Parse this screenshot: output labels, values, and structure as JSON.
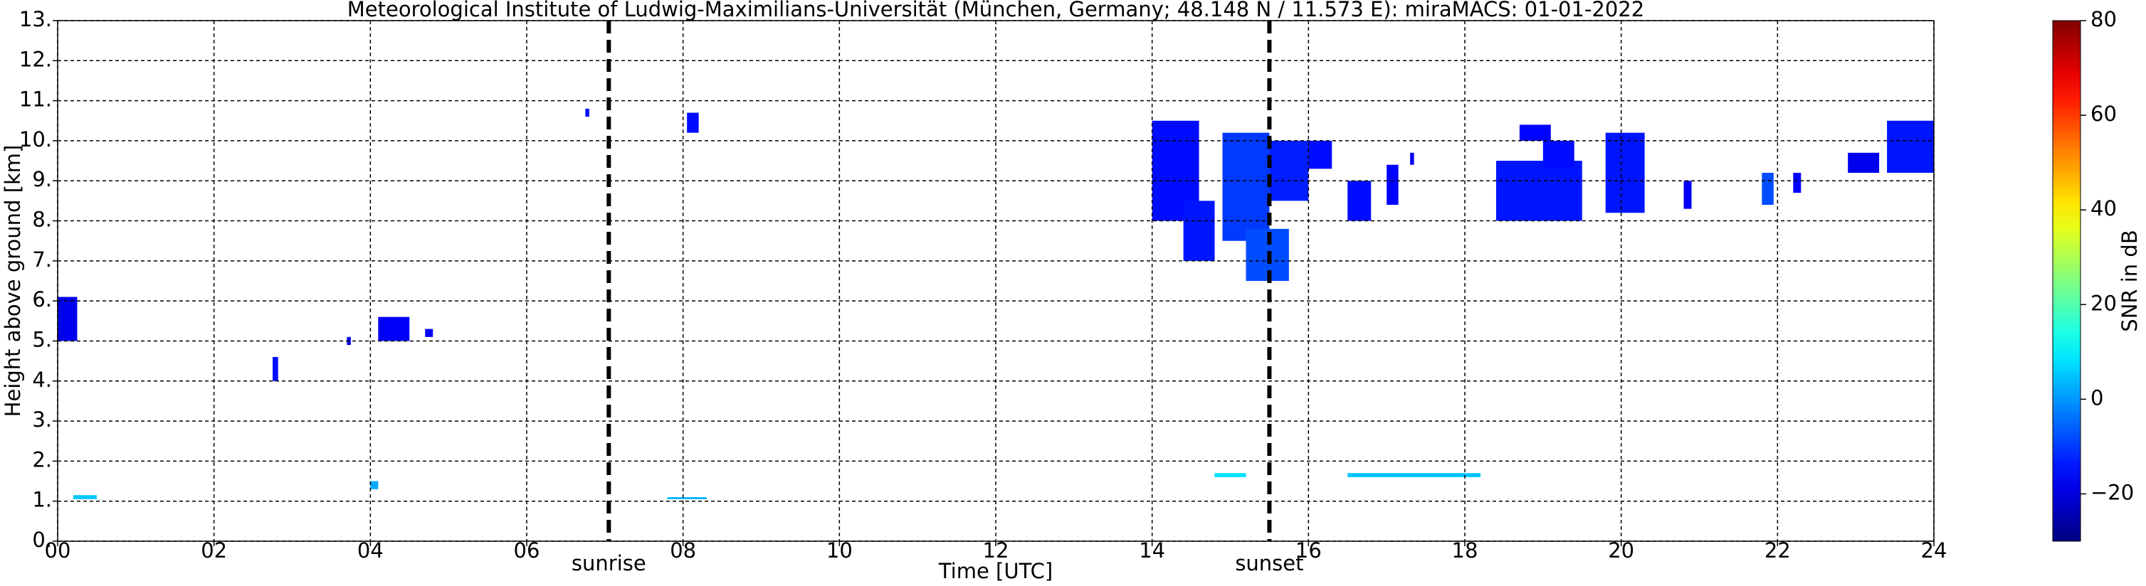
{
  "chart_data": {
    "type": "heatmap",
    "title": "Meteorological Institute of Ludwig-Maximilians-Universität (München, Germany; 48.148 N / 11.573 E):    miraMACS: 01-01-2022",
    "x_label": "Time [UTC]",
    "y_label": "Height above ground [km]",
    "colorbar_label": "SNR in dB",
    "colormap": "jet",
    "xlim": [
      0,
      24
    ],
    "ylim": [
      0,
      13
    ],
    "clim": [
      -30,
      80
    ],
    "grid": true,
    "xticks": [
      {
        "value": 0,
        "label": "00"
      },
      {
        "value": 2,
        "label": "02"
      },
      {
        "value": 4,
        "label": "04"
      },
      {
        "value": 6,
        "label": "06"
      },
      {
        "value": 8,
        "label": "08"
      },
      {
        "value": 10,
        "label": "10"
      },
      {
        "value": 12,
        "label": "12"
      },
      {
        "value": 14,
        "label": "14"
      },
      {
        "value": 16,
        "label": "16"
      },
      {
        "value": 18,
        "label": "18"
      },
      {
        "value": 20,
        "label": "20"
      },
      {
        "value": 22,
        "label": "22"
      },
      {
        "value": 24,
        "label": "24"
      }
    ],
    "yticks": [
      {
        "value": 0,
        "label": "0."
      },
      {
        "value": 1,
        "label": "1."
      },
      {
        "value": 2,
        "label": "2."
      },
      {
        "value": 3,
        "label": "3."
      },
      {
        "value": 4,
        "label": "4."
      },
      {
        "value": 5,
        "label": "5."
      },
      {
        "value": 6,
        "label": "6."
      },
      {
        "value": 7,
        "label": "7."
      },
      {
        "value": 8,
        "label": "8."
      },
      {
        "value": 9,
        "label": "9."
      },
      {
        "value": 10,
        "label": "10."
      },
      {
        "value": 11,
        "label": "11."
      },
      {
        "value": 12,
        "label": "12."
      },
      {
        "value": 13,
        "label": "13."
      }
    ],
    "cticks": [
      {
        "value": -20,
        "label": "−20"
      },
      0,
      20,
      40,
      60,
      80
    ],
    "markers": [
      {
        "label": "sunrise",
        "x": 7.05
      },
      {
        "label": "sunset",
        "x": 15.5
      }
    ],
    "cells": [
      {
        "t": [
          0.0,
          0.25
        ],
        "h": [
          5.0,
          6.1
        ],
        "snr": -18
      },
      {
        "t": [
          2.75,
          2.82
        ],
        "h": [
          4.0,
          4.6
        ],
        "snr": -15
      },
      {
        "t": [
          3.7,
          3.75
        ],
        "h": [
          4.9,
          5.1
        ],
        "snr": -18
      },
      {
        "t": [
          4.1,
          4.5
        ],
        "h": [
          5.0,
          5.6
        ],
        "snr": -17
      },
      {
        "t": [
          4.7,
          4.8
        ],
        "h": [
          5.1,
          5.3
        ],
        "snr": -17
      },
      {
        "t": [
          4.0,
          4.1
        ],
        "h": [
          1.3,
          1.5
        ],
        "snr": 2
      },
      {
        "t": [
          6.75,
          6.8
        ],
        "h": [
          10.6,
          10.8
        ],
        "snr": -15
      },
      {
        "t": [
          8.05,
          8.2
        ],
        "h": [
          10.2,
          10.7
        ],
        "snr": -15
      },
      {
        "t": [
          14.0,
          14.6
        ],
        "h": [
          8.0,
          10.5
        ],
        "snr": -15
      },
      {
        "t": [
          14.4,
          14.8
        ],
        "h": [
          7.0,
          8.5
        ],
        "snr": -14
      },
      {
        "t": [
          14.9,
          15.5
        ],
        "h": [
          7.5,
          10.2
        ],
        "snr": -10
      },
      {
        "t": [
          15.2,
          15.75
        ],
        "h": [
          6.5,
          7.8
        ],
        "snr": -8
      },
      {
        "t": [
          15.5,
          16.0
        ],
        "h": [
          8.5,
          10.0
        ],
        "snr": -13
      },
      {
        "t": [
          16.0,
          16.3
        ],
        "h": [
          9.3,
          10.0
        ],
        "snr": -15
      },
      {
        "t": [
          16.5,
          16.8
        ],
        "h": [
          8.0,
          9.0
        ],
        "snr": -15
      },
      {
        "t": [
          17.0,
          17.15
        ],
        "h": [
          8.4,
          9.4
        ],
        "snr": -16
      },
      {
        "t": [
          17.3,
          17.35
        ],
        "h": [
          9.4,
          9.7
        ],
        "snr": -18
      },
      {
        "t": [
          18.4,
          19.5
        ],
        "h": [
          8.0,
          9.5
        ],
        "snr": -14
      },
      {
        "t": [
          18.7,
          19.1
        ],
        "h": [
          10.0,
          10.4
        ],
        "snr": -16
      },
      {
        "t": [
          19.0,
          19.4
        ],
        "h": [
          9.3,
          10.0
        ],
        "snr": -15
      },
      {
        "t": [
          19.8,
          20.3
        ],
        "h": [
          8.2,
          10.2
        ],
        "snr": -14
      },
      {
        "t": [
          20.8,
          20.9
        ],
        "h": [
          8.3,
          9.0
        ],
        "snr": -17
      },
      {
        "t": [
          21.8,
          21.95
        ],
        "h": [
          8.4,
          9.2
        ],
        "snr": -8
      },
      {
        "t": [
          22.2,
          22.3
        ],
        "h": [
          8.7,
          9.2
        ],
        "snr": -16
      },
      {
        "t": [
          22.9,
          23.3
        ],
        "h": [
          9.2,
          9.7
        ],
        "snr": -18
      },
      {
        "t": [
          23.4,
          24.0
        ],
        "h": [
          9.2,
          10.5
        ],
        "snr": -14
      },
      {
        "t": [
          0.2,
          0.5
        ],
        "h": [
          1.05,
          1.15
        ],
        "snr": 5
      },
      {
        "t": [
          7.8,
          8.3
        ],
        "h": [
          1.05,
          1.1
        ],
        "snr": 3
      },
      {
        "t": [
          14.8,
          15.2
        ],
        "h": [
          1.6,
          1.7
        ],
        "snr": 8
      },
      {
        "t": [
          16.5,
          18.2
        ],
        "h": [
          1.6,
          1.7
        ],
        "snr": 5
      }
    ]
  }
}
